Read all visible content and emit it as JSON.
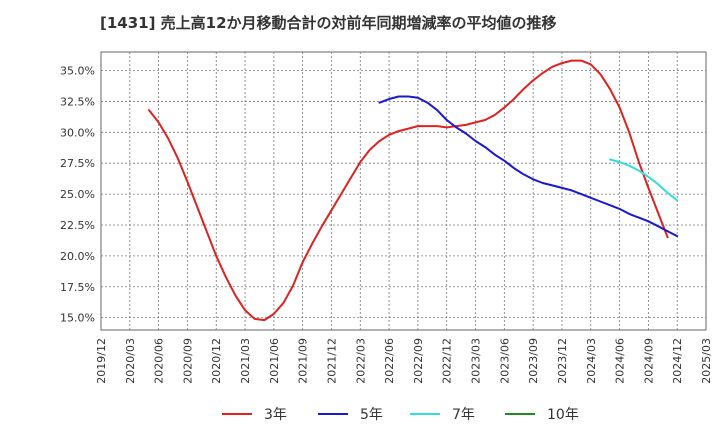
{
  "chart_data": {
    "type": "line",
    "title": "[1431]  売上高12か月移動合計の対前年同期増減率の平均値の推移",
    "xlabel": "",
    "ylabel": "",
    "x_ticks": [
      "2019/12",
      "2020/03",
      "2020/06",
      "2020/09",
      "2020/12",
      "2021/03",
      "2021/06",
      "2021/09",
      "2021/12",
      "2022/03",
      "2022/06",
      "2022/09",
      "2022/12",
      "2023/03",
      "2023/06",
      "2023/09",
      "2023/12",
      "2024/03",
      "2024/06",
      "2024/09",
      "2024/12",
      "2025/03"
    ],
    "y_ticks": [
      "15.0%",
      "17.5%",
      "20.0%",
      "22.5%",
      "25.0%",
      "27.5%",
      "30.0%",
      "32.5%",
      "35.0%"
    ],
    "ylim": [
      14.0,
      36.5
    ],
    "grid": true,
    "legend_position": "bottom",
    "series": [
      {
        "name": "3年",
        "color": "#dd2222",
        "points": [
          [
            "2020/05",
            31.8
          ],
          [
            "2020/06",
            30.8
          ],
          [
            "2020/07",
            29.5
          ],
          [
            "2020/08",
            27.9
          ],
          [
            "2020/09",
            26.0
          ],
          [
            "2020/10",
            24.0
          ],
          [
            "2020/11",
            22.0
          ],
          [
            "2020/12",
            20.0
          ],
          [
            "2021/01",
            18.3
          ],
          [
            "2021/02",
            16.8
          ],
          [
            "2021/03",
            15.6
          ],
          [
            "2021/04",
            14.9
          ],
          [
            "2021/05",
            14.8
          ],
          [
            "2021/06",
            15.3
          ],
          [
            "2021/07",
            16.2
          ],
          [
            "2021/08",
            17.6
          ],
          [
            "2021/09",
            19.5
          ],
          [
            "2021/10",
            21.0
          ],
          [
            "2021/11",
            22.4
          ],
          [
            "2021/12",
            23.7
          ],
          [
            "2022/01",
            25.0
          ],
          [
            "2022/02",
            26.3
          ],
          [
            "2022/03",
            27.6
          ],
          [
            "2022/04",
            28.6
          ],
          [
            "2022/05",
            29.3
          ],
          [
            "2022/06",
            29.8
          ],
          [
            "2022/07",
            30.1
          ],
          [
            "2022/08",
            30.3
          ],
          [
            "2022/09",
            30.5
          ],
          [
            "2022/10",
            30.5
          ],
          [
            "2022/11",
            30.5
          ],
          [
            "2022/12",
            30.4
          ],
          [
            "2023/01",
            30.5
          ],
          [
            "2023/02",
            30.6
          ],
          [
            "2023/03",
            30.8
          ],
          [
            "2023/04",
            31.0
          ],
          [
            "2023/05",
            31.4
          ],
          [
            "2023/06",
            32.0
          ],
          [
            "2023/07",
            32.7
          ],
          [
            "2023/08",
            33.5
          ],
          [
            "2023/09",
            34.2
          ],
          [
            "2023/10",
            34.8
          ],
          [
            "2023/11",
            35.3
          ],
          [
            "2023/12",
            35.6
          ],
          [
            "2024/01",
            35.8
          ],
          [
            "2024/02",
            35.8
          ],
          [
            "2024/03",
            35.5
          ],
          [
            "2024/04",
            34.7
          ],
          [
            "2024/05",
            33.5
          ],
          [
            "2024/06",
            32.0
          ],
          [
            "2024/07",
            30.0
          ],
          [
            "2024/08",
            27.6
          ],
          [
            "2024/09",
            25.5
          ],
          [
            "2024/10",
            23.5
          ],
          [
            "2024/11",
            21.5
          ]
        ]
      },
      {
        "name": "5年",
        "color": "#1a1acc",
        "points": [
          [
            "2022/05",
            32.4
          ],
          [
            "2022/06",
            32.7
          ],
          [
            "2022/07",
            32.9
          ],
          [
            "2022/08",
            32.9
          ],
          [
            "2022/09",
            32.8
          ],
          [
            "2022/10",
            32.4
          ],
          [
            "2022/11",
            31.8
          ],
          [
            "2022/12",
            31.0
          ],
          [
            "2023/01",
            30.4
          ],
          [
            "2023/02",
            29.9
          ],
          [
            "2023/03",
            29.3
          ],
          [
            "2023/04",
            28.8
          ],
          [
            "2023/05",
            28.2
          ],
          [
            "2023/06",
            27.7
          ],
          [
            "2023/07",
            27.1
          ],
          [
            "2023/08",
            26.6
          ],
          [
            "2023/09",
            26.2
          ],
          [
            "2023/10",
            25.9
          ],
          [
            "2023/11",
            25.7
          ],
          [
            "2023/12",
            25.5
          ],
          [
            "2024/01",
            25.3
          ],
          [
            "2024/02",
            25.0
          ],
          [
            "2024/03",
            24.7
          ],
          [
            "2024/04",
            24.4
          ],
          [
            "2024/05",
            24.1
          ],
          [
            "2024/06",
            23.8
          ],
          [
            "2024/07",
            23.4
          ],
          [
            "2024/08",
            23.1
          ],
          [
            "2024/09",
            22.8
          ],
          [
            "2024/10",
            22.4
          ],
          [
            "2024/11",
            22.0
          ],
          [
            "2024/12",
            21.6
          ]
        ]
      },
      {
        "name": "7年",
        "color": "#33dddd",
        "points": [
          [
            "2024/05",
            27.8
          ],
          [
            "2024/06",
            27.6
          ],
          [
            "2024/07",
            27.3
          ],
          [
            "2024/08",
            26.9
          ],
          [
            "2024/09",
            26.4
          ],
          [
            "2024/10",
            25.8
          ],
          [
            "2024/11",
            25.1
          ],
          [
            "2024/12",
            24.5
          ]
        ]
      },
      {
        "name": "10年",
        "color": "#228822",
        "points": []
      }
    ]
  }
}
